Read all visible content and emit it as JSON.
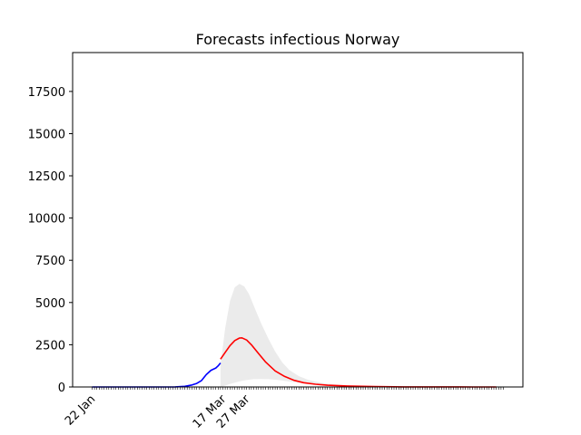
{
  "chart_data": {
    "type": "line",
    "title": "Forecasts infectious Norway",
    "xlabel": "",
    "ylabel": "",
    "x_tick_labels": [
      "22 Jan",
      "17 Mar",
      "27 Mar"
    ],
    "y_ticks": [
      0,
      2500,
      5000,
      7500,
      10000,
      12500,
      15000,
      17500
    ],
    "ylim": [
      0,
      19800
    ],
    "grid": false,
    "series": [
      {
        "color": "#0000ff",
        "x": [
          "2020-01-22",
          "2020-02-01",
          "2020-02-11",
          "2020-02-21",
          "2020-02-26",
          "2020-03-01",
          "2020-03-04",
          "2020-03-06",
          "2020-03-08",
          "2020-03-09",
          "2020-03-10",
          "2020-03-12",
          "2020-03-14",
          "2020-03-15",
          "2020-03-16"
        ],
        "values": [
          0,
          0,
          0,
          0,
          5,
          40,
          120,
          210,
          380,
          560,
          730,
          990,
          1120,
          1250,
          1420
        ]
      },
      {
        "color": "#ff0000",
        "x": [
          "2020-03-16",
          "2020-03-18",
          "2020-03-20",
          "2020-03-22",
          "2020-03-24",
          "2020-03-25",
          "2020-03-27",
          "2020-03-29",
          "2020-04-01",
          "2020-04-04",
          "2020-04-08",
          "2020-04-12",
          "2020-04-16",
          "2020-04-20",
          "2020-04-25",
          "2020-04-30",
          "2020-05-10",
          "2020-05-20",
          "2020-06-01",
          "2020-06-15",
          "2020-06-30",
          "2020-07-10"
        ],
        "values": [
          1650,
          2050,
          2450,
          2750,
          2900,
          2910,
          2780,
          2500,
          1980,
          1470,
          950,
          620,
          390,
          250,
          160,
          100,
          50,
          20,
          8,
          3,
          1,
          0
        ]
      }
    ],
    "band": {
      "color": "#ebebeb",
      "x": [
        "2020-03-16",
        "2020-03-18",
        "2020-03-20",
        "2020-03-22",
        "2020-03-24",
        "2020-03-26",
        "2020-03-28",
        "2020-03-30",
        "2020-04-02",
        "2020-04-05",
        "2020-04-08",
        "2020-04-11",
        "2020-04-14",
        "2020-04-18",
        "2020-04-22",
        "2020-04-27",
        "2020-05-02",
        "2020-05-10",
        "2020-05-20",
        "2020-06-01",
        "2020-06-15",
        "2020-07-10"
      ],
      "upper": [
        1300,
        3500,
        5100,
        5900,
        6100,
        5950,
        5500,
        4800,
        3800,
        2900,
        2100,
        1450,
        1000,
        640,
        420,
        260,
        160,
        80,
        30,
        10,
        3,
        0
      ],
      "lower": [
        0,
        80,
        180,
        260,
        330,
        390,
        430,
        460,
        470,
        460,
        430,
        380,
        320,
        250,
        190,
        130,
        90,
        45,
        18,
        6,
        2,
        0
      ]
    }
  }
}
